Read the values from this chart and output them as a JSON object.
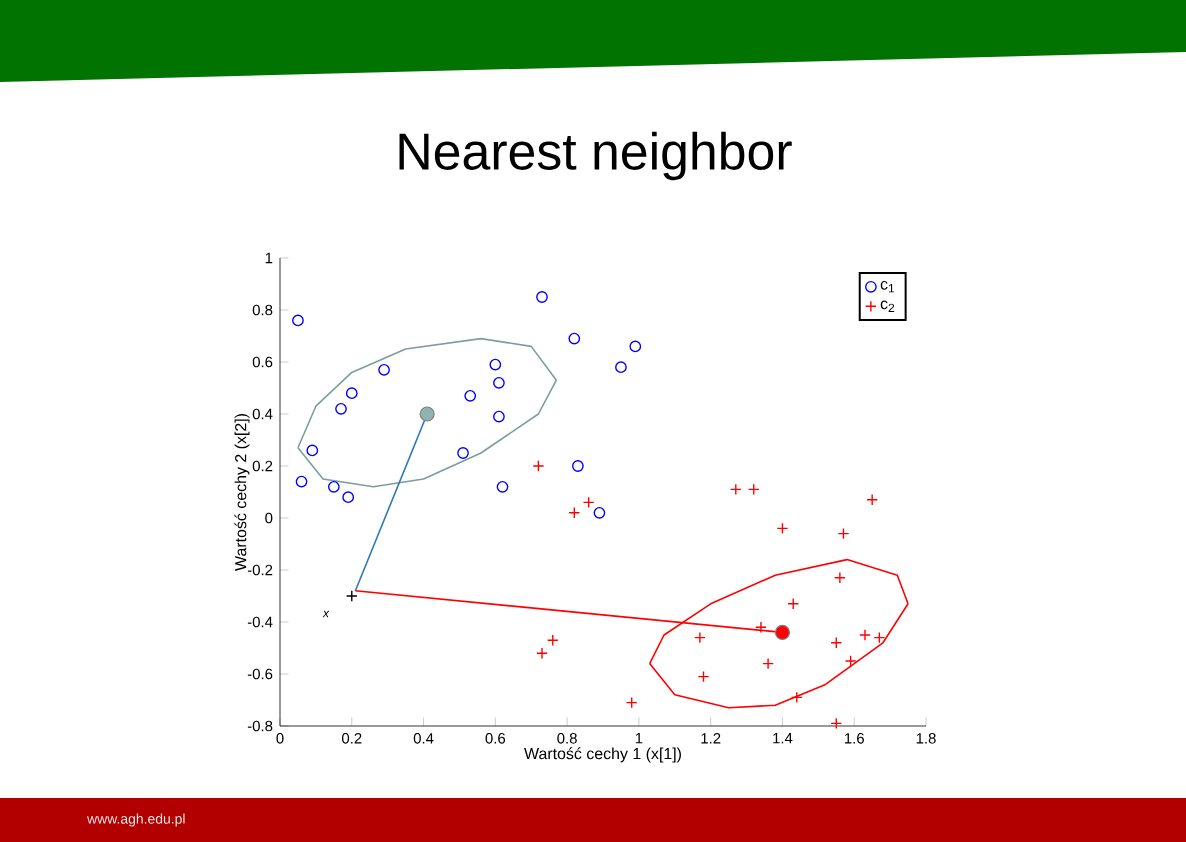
{
  "chart_data": {
    "type": "scatter",
    "title": "Nearest neighbor",
    "xlabel": "Wartość cechy 1 (x[1])",
    "ylabel": "Wartość cechy 2 (x[2])",
    "xlim": [
      0,
      1.8
    ],
    "ylim": [
      -0.8,
      1
    ],
    "xticks": [
      0,
      0.2,
      0.4,
      0.6,
      0.8,
      1,
      1.2,
      1.4,
      1.6,
      1.8
    ],
    "yticks": [
      -0.8,
      -0.6,
      -0.4,
      -0.2,
      0,
      0.2,
      0.4,
      0.6,
      0.8,
      1
    ],
    "legend": "top right",
    "grid": false,
    "annotations": [
      "www.agh.edu.pl",
      "x"
    ],
    "series": [
      {
        "type": "line",
        "color": "#7a9e9c",
        "x": [
          0.05,
          0.1,
          0.2,
          0.35,
          0.56,
          0.7,
          0.77
        ],
        "values": [
          0.27,
          0.43,
          0.56,
          0.65,
          0.69,
          0.66,
          0.53
        ]
      },
      {
        "type": "line",
        "color": "#7a9e9c",
        "x": [
          0.77,
          0.72,
          0.56,
          0.4,
          0.26,
          0.12,
          0.05
        ],
        "values": [
          0.53,
          0.4,
          0.25,
          0.15,
          0.12,
          0.15,
          0.27
        ]
      },
      {
        "type": "line",
        "color": "#ff0000",
        "x": [
          1.03,
          1.07,
          1.2,
          1.38,
          1.58,
          1.72,
          1.75
        ],
        "values": [
          -0.56,
          -0.45,
          -0.33,
          -0.22,
          -0.16,
          -0.22,
          -0.33
        ]
      },
      {
        "type": "line",
        "color": "#ff0000",
        "x": [
          1.75,
          1.68,
          1.52,
          1.38,
          1.25,
          1.1,
          1.03
        ],
        "values": [
          -0.33,
          -0.48,
          -0.64,
          -0.72,
          -0.73,
          -0.68,
          -0.56
        ]
      },
      {
        "type": "line",
        "color": "#2a7ab9",
        "x": [
          0.21,
          0.41
        ],
        "values": [
          -0.28,
          0.4
        ]
      },
      {
        "type": "line",
        "color": "#ff0000",
        "x": [
          0.21,
          1.4
        ],
        "values": [
          -0.28,
          -0.44
        ]
      },
      {
        "name": "c$_{1}$",
        "color": "#0000ff",
        "marker": "circle",
        "x": [
          0.05,
          0.73,
          0.82,
          0.99,
          0.95,
          0.29,
          0.6,
          0.61,
          0.2,
          0.53,
          0.17,
          0.61,
          0.09,
          0.51,
          0.83,
          0.06,
          0.15,
          0.62,
          0.19,
          0.89
        ],
        "values": [
          0.76,
          0.85,
          0.69,
          0.66,
          0.58,
          0.57,
          0.59,
          0.52,
          0.48,
          0.47,
          0.42,
          0.39,
          0.26,
          0.25,
          0.2,
          0.14,
          0.12,
          0.12,
          0.08,
          0.02
        ]
      },
      {
        "name": "c$_{2}$",
        "color": "#ff0000",
        "marker": "cross",
        "x": [
          0.72,
          0.82,
          0.86,
          1.27,
          1.32,
          1.65,
          1.4,
          1.57,
          1.56,
          1.43,
          1.34,
          1.17,
          1.55,
          1.63,
          1.67,
          0.76,
          0.73,
          1.36,
          1.59,
          1.18,
          0.98,
          1.44,
          1.55
        ],
        "values": [
          0.2,
          0.02,
          0.06,
          0.11,
          0.11,
          0.07,
          -0.04,
          -0.06,
          -0.23,
          -0.33,
          -0.42,
          -0.46,
          -0.48,
          -0.45,
          -0.46,
          -0.47,
          -0.52,
          -0.56,
          -0.55,
          -0.61,
          -0.71,
          -0.69,
          -0.79
        ]
      },
      {
        "color": "#8fb3b0",
        "marker": "circle",
        "x": [
          0.41
        ],
        "values": [
          0.4
        ]
      },
      {
        "color": "#ff0000",
        "marker": "circle",
        "x": [
          1.4
        ],
        "values": [
          -0.44
        ]
      },
      {
        "color": "#000000",
        "marker": "cross",
        "x": [
          0.2
        ],
        "values": [
          -0.3
        ]
      }
    ]
  }
}
